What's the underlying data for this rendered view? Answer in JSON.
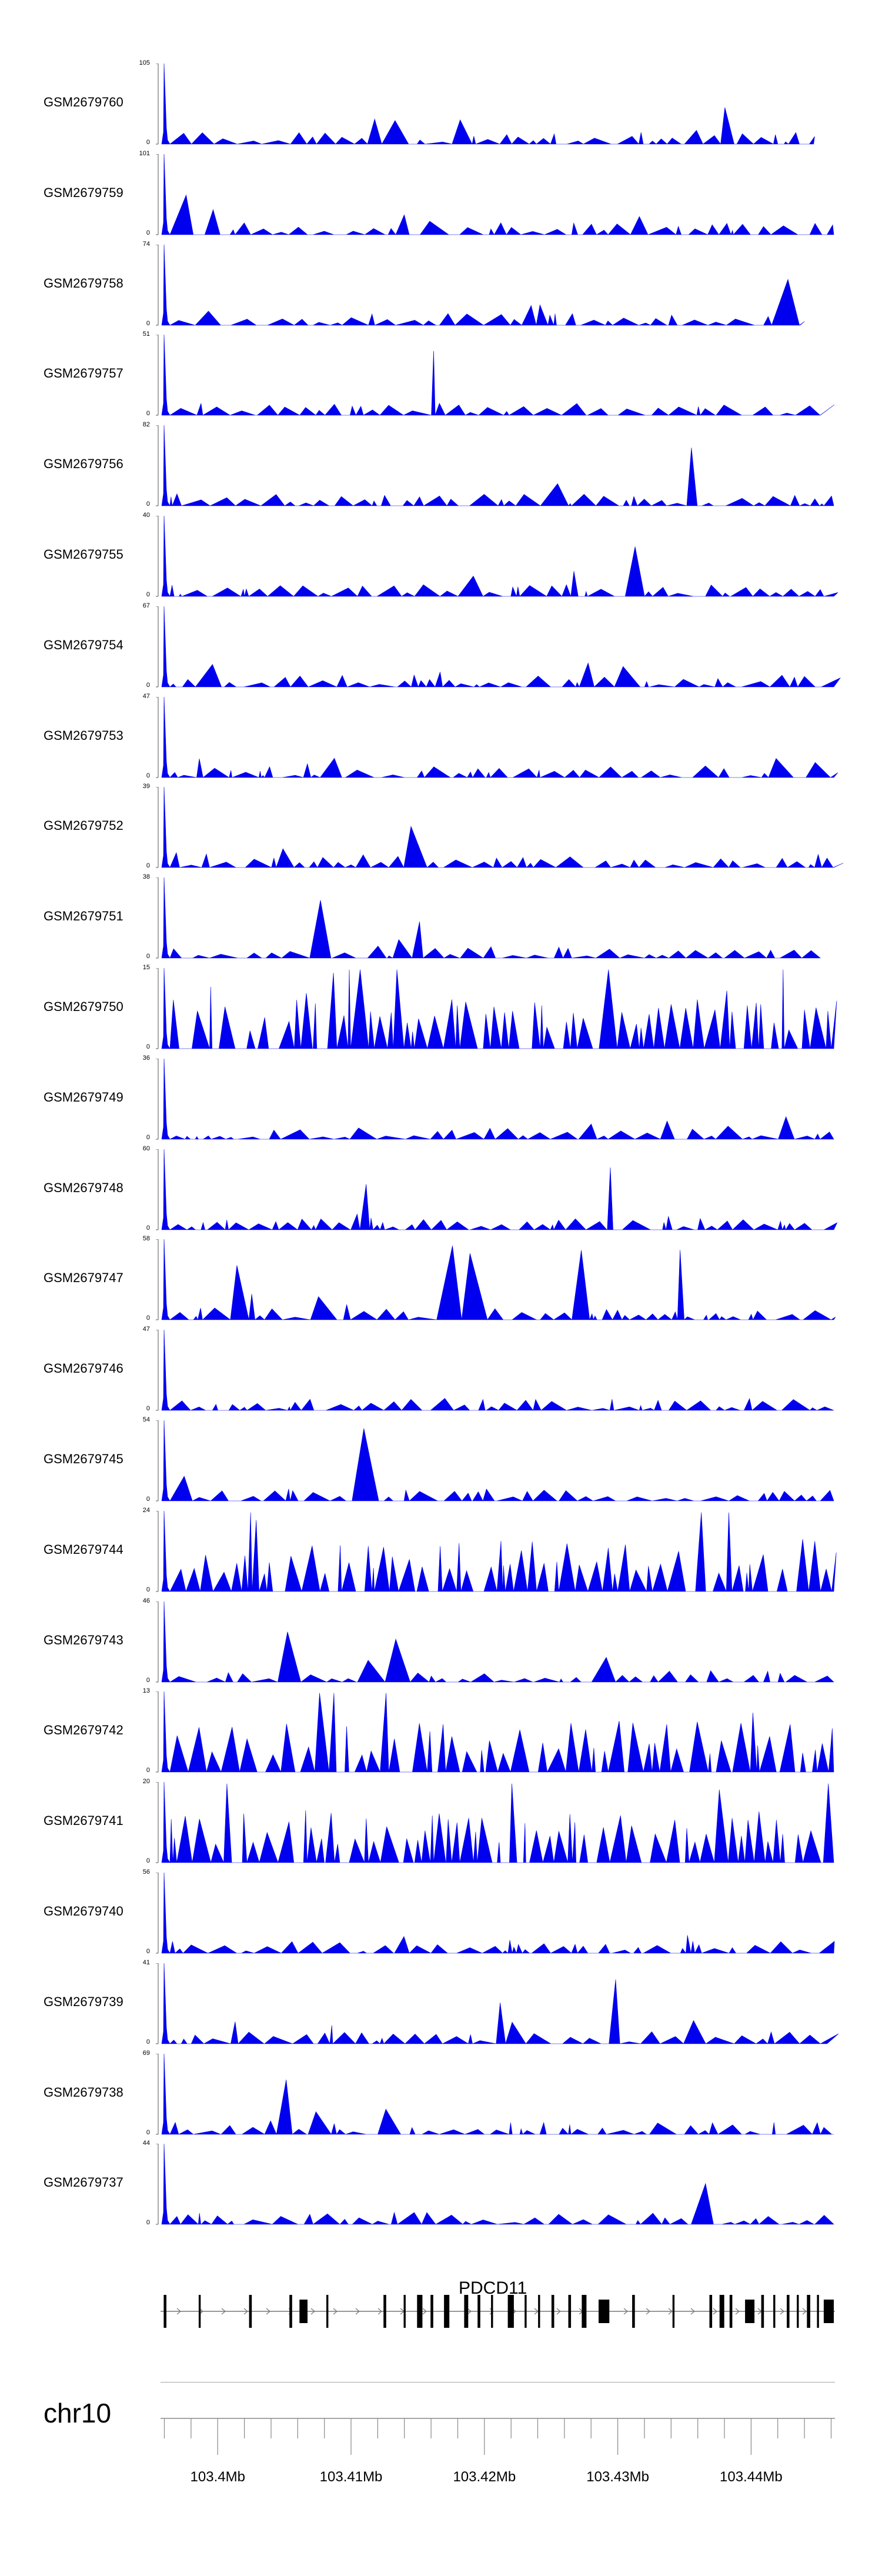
{
  "figure": {
    "type": "genome-track-plot",
    "track_color": "#0000ee",
    "axis_color": "#888888",
    "gene_color": "#000000"
  },
  "chart_data": {
    "type": "area",
    "tracks": [
      {
        "name": "GSM2679760",
        "ymax": 105,
        "ymin": 0,
        "end": 0.97
      },
      {
        "name": "GSM2679759",
        "ymax": 101,
        "ymin": 0,
        "end": 1.0
      },
      {
        "name": "GSM2679758",
        "ymax": 74,
        "ymin": 0,
        "end": 0.95
      },
      {
        "name": "GSM2679757",
        "ymax": 51,
        "ymin": 0,
        "end": 0.98
      },
      {
        "name": "GSM2679756",
        "ymax": 82,
        "ymin": 0,
        "end": 1.0
      },
      {
        "name": "GSM2679755",
        "ymax": 40,
        "ymin": 0,
        "end": 1.0
      },
      {
        "name": "GSM2679754",
        "ymax": 67,
        "ymin": 0,
        "end": 1.0
      },
      {
        "name": "GSM2679753",
        "ymax": 47,
        "ymin": 0,
        "end": 1.0
      },
      {
        "name": "GSM2679752",
        "ymax": 39,
        "ymin": 0,
        "end": 1.0
      },
      {
        "name": "GSM2679751",
        "ymax": 38,
        "ymin": 0,
        "end": 0.98
      },
      {
        "name": "GSM2679750",
        "ymax": 15,
        "ymin": 0,
        "end": 1.0
      },
      {
        "name": "GSM2679749",
        "ymax": 36,
        "ymin": 0,
        "end": 1.0
      },
      {
        "name": "GSM2679748",
        "ymax": 60,
        "ymin": 0,
        "end": 1.0
      },
      {
        "name": "GSM2679747",
        "ymax": 58,
        "ymin": 0,
        "end": 1.0
      },
      {
        "name": "GSM2679746",
        "ymax": 47,
        "ymin": 0,
        "end": 1.0
      },
      {
        "name": "GSM2679745",
        "ymax": 54,
        "ymin": 0,
        "end": 1.0
      },
      {
        "name": "GSM2679744",
        "ymax": 24,
        "ymin": 0,
        "end": 1.0
      },
      {
        "name": "GSM2679743",
        "ymax": 46,
        "ymin": 0,
        "end": 1.0
      },
      {
        "name": "GSM2679742",
        "ymax": 13,
        "ymin": 0,
        "end": 1.0
      },
      {
        "name": "GSM2679741",
        "ymax": 20,
        "ymin": 0,
        "end": 1.0
      },
      {
        "name": "GSM2679740",
        "ymax": 56,
        "ymin": 0,
        "end": 1.0
      },
      {
        "name": "GSM2679739",
        "ymax": 41,
        "ymin": 0,
        "end": 0.99
      },
      {
        "name": "GSM2679738",
        "ymax": 69,
        "ymin": 0,
        "end": 1.0
      },
      {
        "name": "GSM2679737",
        "ymax": 44,
        "ymin": 0,
        "end": 1.0
      }
    ],
    "gene": {
      "name": "PDCD11",
      "strand": "+"
    },
    "chromosome": "chr10",
    "xlim_mb": [
      103.3958,
      103.4462
    ],
    "x_tick_labels": [
      "103.4Mb",
      "103.41Mb",
      "103.42Mb",
      "103.43Mb",
      "103.44Mb"
    ],
    "x_tick_values_mb": [
      103.4,
      103.41,
      103.42,
      103.43,
      103.44
    ],
    "minor_tick_step_mb": 0.002
  }
}
